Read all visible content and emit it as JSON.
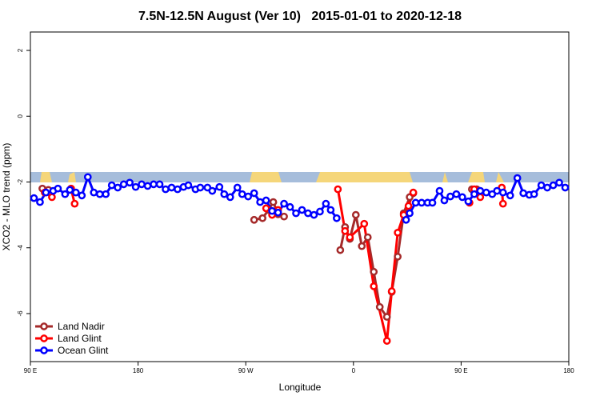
{
  "chart_data": {
    "type": "line",
    "title": "7.5N-12.5N August (Ver 10)   2015-01-01 to 2020-12-18",
    "x_label": "Longitude",
    "y_label": "XCO2 - MLO trend (ppm)",
    "xlim": [
      90,
      540
    ],
    "ylim": [
      -7.46,
      2.56
    ],
    "xticks": [
      {
        "value": 90,
        "label": "90 E"
      },
      180,
      {
        "value": 270,
        "label": "90 W"
      },
      {
        "value": 360,
        "label": "0"
      },
      {
        "value": 450,
        "label": "90 E"
      },
      {
        "value": 540,
        "label": "180"
      }
    ],
    "yticks": [
      2,
      0,
      -2,
      -4,
      -6
    ],
    "legend": "bottom-left",
    "series": [
      {
        "name": "Land Nadir",
        "color": "#a52a2a",
        "x": [
          100,
          105,
          null,
          277,
          284,
          289,
          293,
          297,
          302,
          null,
          349,
          353,
          357,
          362,
          367,
          372,
          377,
          382,
          388,
          392,
          397,
          402,
          407,
          410,
          null,
          459,
          463
        ],
        "values": [
          -2.2,
          -2.24,
          null,
          -3.15,
          -3.1,
          -2.85,
          -2.61,
          -2.98,
          -3.05,
          null,
          -4.07,
          -3.37,
          -3.73,
          -3.0,
          -3.95,
          -3.68,
          -4.73,
          -5.8,
          -6.1,
          -5.34,
          -4.27,
          -2.95,
          -2.46,
          -2.34,
          null,
          -2.22,
          -2.22
        ]
      },
      {
        "name": "Land Glint",
        "color": "#ff0000",
        "x": [
          102,
          108,
          null,
          124,
          127,
          null,
          287,
          292,
          297,
          null,
          347,
          353,
          357,
          369,
          377,
          388,
          392,
          397,
          402,
          406,
          410,
          null,
          457,
          null,
          461,
          466,
          null,
          484,
          485
        ],
        "values": [
          -2.32,
          -2.46,
          null,
          -2.2,
          -2.66,
          null,
          -2.8,
          -3.0,
          -2.85,
          null,
          -2.22,
          -3.49,
          -3.68,
          -3.27,
          -5.17,
          -6.83,
          -5.32,
          -3.54,
          -3.0,
          -2.73,
          -2.32,
          null,
          -2.63,
          null,
          -2.22,
          -2.46,
          null,
          -2.17,
          -2.66
        ]
      },
      {
        "name": "Ocean Glint",
        "color": "#0000ff",
        "x": [
          93,
          98,
          103,
          109,
          113,
          119,
          123,
          128,
          133,
          138,
          143,
          148,
          153,
          158,
          163,
          168,
          173,
          178,
          183,
          188,
          193,
          198,
          203,
          208,
          213,
          218,
          222,
          228,
          232,
          238,
          242,
          248,
          252,
          257,
          263,
          267,
          272,
          277,
          282,
          287,
          292,
          297,
          302,
          307,
          312,
          317,
          322,
          327,
          332,
          337,
          341,
          346,
          null,
          404,
          407,
          412,
          417,
          422,
          426,
          432,
          436,
          441,
          446,
          451,
          456,
          461,
          466,
          471,
          476,
          480,
          485,
          491,
          497,
          502,
          507,
          511,
          517,
          522,
          527,
          532,
          537
        ],
        "values": [
          -2.49,
          -2.61,
          -2.32,
          -2.27,
          -2.2,
          -2.37,
          -2.24,
          -2.32,
          -2.41,
          -1.85,
          -2.32,
          -2.37,
          -2.37,
          -2.1,
          -2.17,
          -2.07,
          -2.02,
          -2.15,
          -2.07,
          -2.12,
          -2.07,
          -2.07,
          -2.22,
          -2.17,
          -2.22,
          -2.15,
          -2.1,
          -2.22,
          -2.17,
          -2.17,
          -2.27,
          -2.15,
          -2.37,
          -2.46,
          -2.17,
          -2.37,
          -2.44,
          -2.34,
          -2.61,
          -2.56,
          -2.88,
          -2.93,
          -2.66,
          -2.76,
          -2.95,
          -2.85,
          -2.95,
          -3.0,
          -2.9,
          -2.66,
          -2.85,
          -3.1,
          null,
          -3.15,
          -2.95,
          -2.63,
          -2.63,
          -2.63,
          -2.63,
          -2.27,
          -2.56,
          -2.44,
          -2.37,
          -2.46,
          -2.59,
          -2.37,
          -2.27,
          -2.32,
          -2.37,
          -2.27,
          -2.32,
          -2.41,
          -1.88,
          -2.34,
          -2.39,
          -2.37,
          -2.1,
          -2.17,
          -2.1,
          -2.02,
          -2.17
        ]
      }
    ]
  }
}
